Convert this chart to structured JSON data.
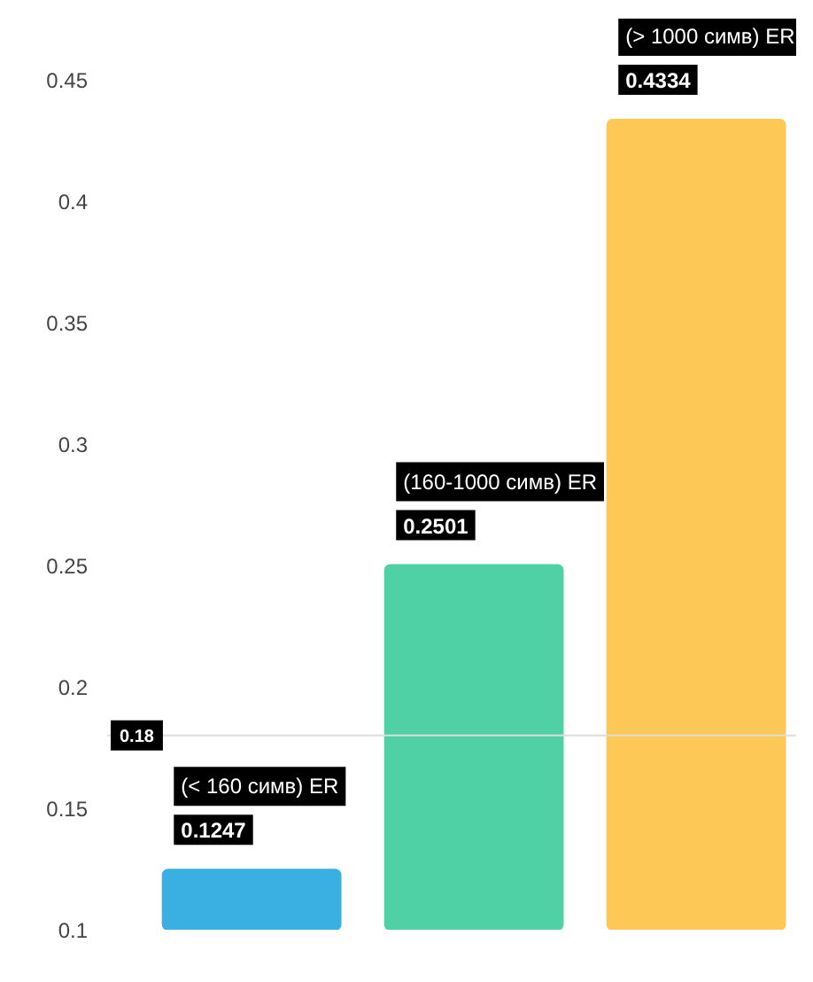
{
  "chart_data": {
    "type": "bar",
    "categories": [
      "(< 160 симв) ER",
      "(160-1000 симв) ER",
      "(> 1000 симв) ER"
    ],
    "values": [
      0.1247,
      0.2501,
      0.4334
    ],
    "colors": [
      "#3ab0e2",
      "#4fd1a5",
      "#fdc856"
    ],
    "ylim": [
      0.1,
      0.475
    ],
    "yticks": [
      0.1,
      0.15,
      0.2,
      0.25,
      0.3,
      0.35,
      0.4,
      0.45
    ],
    "grid": false,
    "data_labels": true,
    "ref_lines": [
      {
        "axis": "y",
        "value": 0.18,
        "label": "0.18",
        "color": "#dddddd"
      }
    ]
  }
}
